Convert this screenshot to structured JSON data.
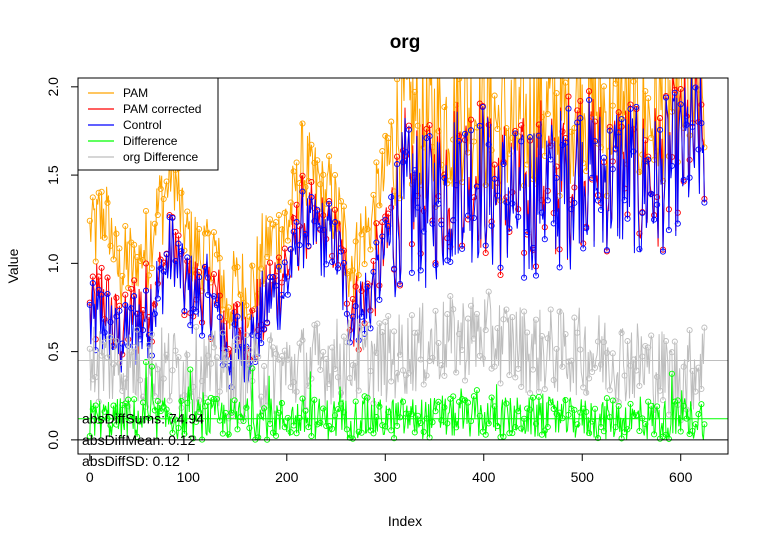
{
  "chart_data": {
    "type": "line",
    "title": "org",
    "xlabel": "Index",
    "ylabel": "Value",
    "xlim": [
      -12,
      648
    ],
    "ylim": [
      -0.08,
      2.05
    ],
    "xticks": [
      0,
      100,
      200,
      300,
      400,
      500,
      600
    ],
    "yticks": [
      0.0,
      0.5,
      1.0,
      1.5,
      2.0
    ],
    "xtick_labels": [
      "0",
      "100",
      "200",
      "300",
      "400",
      "500",
      "600"
    ],
    "ytick_labels": [
      "0.0",
      "0.5",
      "1.0",
      "1.5",
      "2.0"
    ],
    "n_points": 625,
    "legend_position": "top-left",
    "series": [
      {
        "name": "PAM",
        "color": "#FFA500",
        "trend_x": [
          0,
          15,
          30,
          45,
          60,
          75,
          85,
          95,
          110,
          125,
          140,
          150,
          165,
          180,
          200,
          215,
          230,
          250,
          265,
          280,
          300,
          320,
          340,
          360,
          380,
          400,
          420,
          440,
          460,
          480,
          500,
          520,
          540,
          560,
          580,
          600,
          624
        ],
        "trend_y": [
          1.15,
          1.3,
          0.95,
          1.0,
          1.1,
          1.4,
          1.55,
          1.2,
          1.05,
          1.1,
          0.75,
          0.9,
          0.85,
          1.1,
          1.2,
          1.55,
          1.45,
          1.35,
          1.0,
          1.15,
          1.5,
          1.85,
          1.75,
          1.8,
          1.9,
          1.85,
          1.8,
          1.75,
          1.9,
          1.8,
          1.95,
          1.85,
          1.9,
          1.8,
          1.85,
          1.9,
          1.95
        ]
      },
      {
        "name": "PAM corrected",
        "color": "#FF0000",
        "trend_x": [
          0,
          15,
          30,
          45,
          60,
          75,
          85,
          95,
          110,
          125,
          140,
          150,
          165,
          180,
          200,
          215,
          230,
          250,
          265,
          280,
          300,
          320,
          340,
          360,
          380,
          400,
          420,
          440,
          460,
          480,
          500,
          520,
          540,
          560,
          580,
          600,
          624
        ],
        "trend_y": [
          0.75,
          0.8,
          0.6,
          0.7,
          0.75,
          1.0,
          1.1,
          0.9,
          0.85,
          0.85,
          0.55,
          0.6,
          0.6,
          0.8,
          0.95,
          1.25,
          1.2,
          1.15,
          0.75,
          0.8,
          1.1,
          1.4,
          1.35,
          1.45,
          1.55,
          1.5,
          1.4,
          1.35,
          1.5,
          1.45,
          1.6,
          1.5,
          1.55,
          1.45,
          1.5,
          1.65,
          1.75
        ]
      },
      {
        "name": "Control",
        "color": "#0000FF",
        "trend_x": [
          0,
          15,
          30,
          45,
          60,
          75,
          85,
          95,
          110,
          125,
          140,
          150,
          165,
          180,
          200,
          215,
          230,
          250,
          265,
          280,
          300,
          320,
          340,
          360,
          380,
          400,
          420,
          440,
          460,
          480,
          500,
          520,
          540,
          560,
          580,
          600,
          624
        ],
        "trend_y": [
          0.65,
          0.7,
          0.55,
          0.65,
          0.7,
          0.95,
          1.05,
          0.85,
          0.8,
          0.8,
          0.5,
          0.55,
          0.55,
          0.75,
          0.9,
          1.2,
          1.15,
          1.1,
          0.7,
          0.75,
          1.05,
          1.35,
          1.3,
          1.4,
          1.5,
          1.45,
          1.35,
          1.3,
          1.45,
          1.4,
          1.55,
          1.45,
          1.5,
          1.4,
          1.45,
          1.6,
          1.7
        ]
      },
      {
        "name": "Difference",
        "color": "#00FF00",
        "trend_x": [
          0,
          100,
          200,
          300,
          400,
          500,
          600,
          624
        ],
        "trend_y": [
          0.12,
          0.12,
          0.12,
          0.12,
          0.13,
          0.12,
          0.11,
          0.12
        ]
      },
      {
        "name": "org Difference",
        "color": "#BEBEBE",
        "trend_x": [
          0,
          50,
          100,
          150,
          200,
          250,
          300,
          350,
          400,
          450,
          500,
          550,
          600,
          624
        ],
        "trend_y": [
          0.45,
          0.4,
          0.4,
          0.35,
          0.4,
          0.45,
          0.45,
          0.55,
          0.6,
          0.5,
          0.5,
          0.45,
          0.35,
          0.45
        ]
      }
    ],
    "reference_lines": [
      {
        "y": 0.0,
        "color": "#000000"
      },
      {
        "y": 0.12,
        "color": "#00FF00"
      },
      {
        "y": 0.45,
        "color": "#BEBEBE"
      }
    ],
    "annotations": [
      {
        "text": "absDiffSums: 74.94",
        "x": -12,
        "y": 0.12
      },
      {
        "text": "absDiffMean: 0.12",
        "x": -12,
        "y": 0.0
      },
      {
        "text": "absDiffSD: 0.12",
        "x": -12,
        "y": -0.12
      }
    ]
  }
}
